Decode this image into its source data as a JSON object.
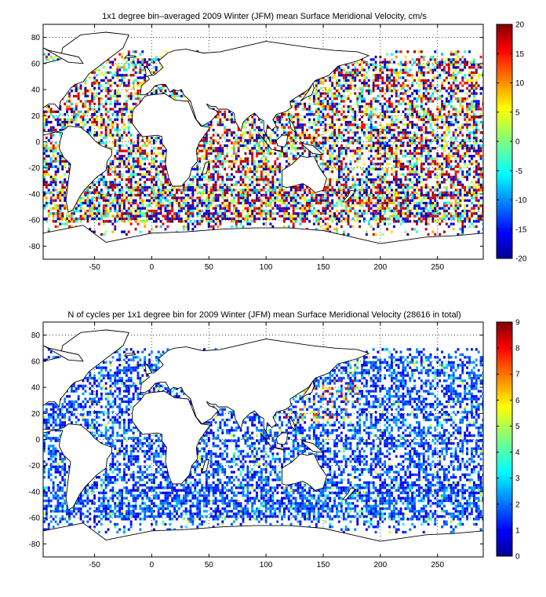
{
  "panels": [
    {
      "id": "velocity",
      "title": "1x1 degree bin–averaged 2009 Winter (JFM) mean Surface Meridional Velocity, cm/s",
      "x_ticks": [
        "-50",
        "0",
        "50",
        "100",
        "150",
        "200",
        "250"
      ],
      "y_ticks": [
        "80",
        "60",
        "40",
        "20",
        "0",
        "-20",
        "-40",
        "-60",
        "-80"
      ],
      "colorbar_ticks": [
        "20",
        "15",
        "10",
        "5",
        "0",
        "-5",
        "-10",
        "-15",
        "-20"
      ],
      "colormap": "jet",
      "value_range": [
        -20,
        20
      ],
      "xlim": [
        -95,
        290
      ],
      "ylim": [
        -90,
        90
      ]
    },
    {
      "id": "counts",
      "title": "N of cycles per 1x1 degree bin for 2009 Winter (JFM) mean Surface Meridional Velocity (28616 in total)",
      "x_ticks": [
        "-50",
        "0",
        "50",
        "100",
        "150",
        "200",
        "250"
      ],
      "y_ticks": [
        "80",
        "60",
        "40",
        "20",
        "0",
        "-20",
        "-40",
        "-60",
        "-80"
      ],
      "colorbar_ticks": [
        "9",
        "8",
        "7",
        "6",
        "5",
        "4",
        "3",
        "2",
        "1",
        "0"
      ],
      "colormap": "jet",
      "value_range": [
        0,
        9
      ],
      "xlim": [
        -95,
        290
      ],
      "ylim": [
        -90,
        90
      ]
    }
  ]
}
